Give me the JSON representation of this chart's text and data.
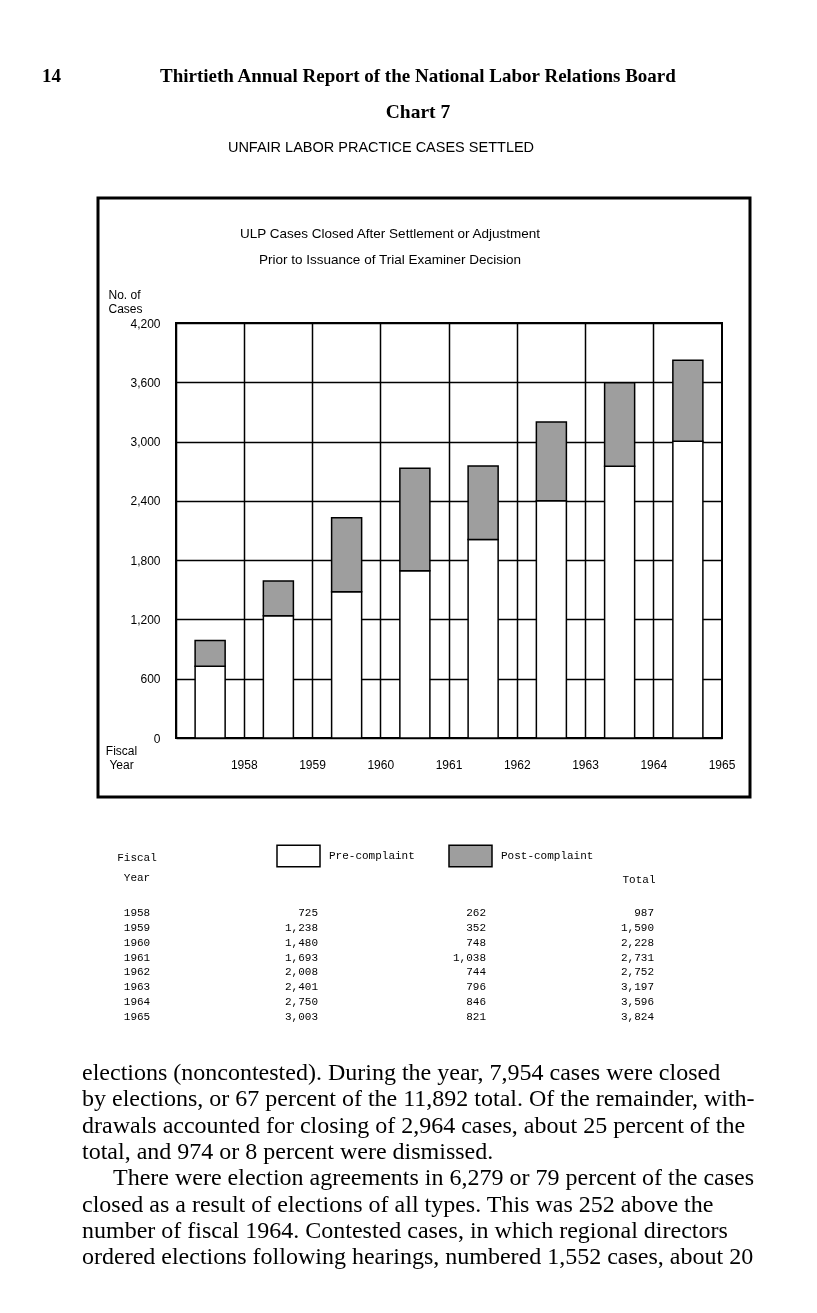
{
  "chart_data": {
    "type": "bar",
    "title": "Chart 7",
    "subtitle": "UNFAIR LABOR PRACTICE CASES SETTLED",
    "xlabel": "Fiscal Year",
    "ylabel": "No. of Cases",
    "categories": [
      "1958",
      "1959",
      "1960",
      "1961",
      "1962",
      "1963",
      "1964",
      "1965"
    ],
    "series": [
      {
        "name": "Pre-complaint",
        "color": "#ffffff",
        "values": [
          725,
          1238,
          1480,
          1693,
          2008,
          2401,
          2750,
          3003
        ]
      },
      {
        "name": "Post-complaint",
        "color": "#9e9e9e",
        "values": [
          262,
          352,
          748,
          1038,
          744,
          796,
          846,
          821
        ]
      }
    ],
    "stacked": true,
    "ylim": [
      0,
      4200
    ],
    "yticks": [
      0,
      600,
      {
        "value": 1200,
        "label": "1,200"
      },
      {
        "value": 1800,
        "label": "1,800"
      },
      {
        "value": 2400,
        "label": "2,400"
      },
      {
        "value": 3000,
        "label": "3,000"
      },
      {
        "value": 3600,
        "label": "3,600"
      },
      {
        "value": 4200,
        "label": "4,200"
      }
    ],
    "grid": true,
    "legend": "bottom",
    "annotations": [
      "14",
      "Thirtieth Annual Report of the National Labor Relations Board",
      "ULP Cases Closed After Settlement or Adjustment",
      "Prior to Issuance of Trial Examiner Decision",
      "Total",
      "725",
      "262",
      "987",
      "1,238",
      "352",
      "1,590",
      "1,480",
      "748",
      "2,228",
      "1,693",
      "1,038",
      "2,731",
      "2,008",
      "744",
      "2,752",
      "2,401",
      "796",
      "3,197",
      "2,750",
      "846",
      "3,596",
      "3,003",
      "821",
      "3,824",
      "elections (noncontested). During the year, 7,954 cases were closed\nby elections, or 67 percent of the 11,892 total. Of the remainder, with-\ndrawals accounted for closing of 2,964 cases, about 25 percent of the\ntotal, and 974 or 8 percent were dismissed.",
      "There were election agreements in 6,279 or 79 percent of the cases\nclosed as a result of elections of all types. This was 252 above the\nnumber of fiscal 1964. Contested cases, in which regional directors\nordered elections following hearings, numbered 1,552 cases, about 20"
    ]
  }
}
